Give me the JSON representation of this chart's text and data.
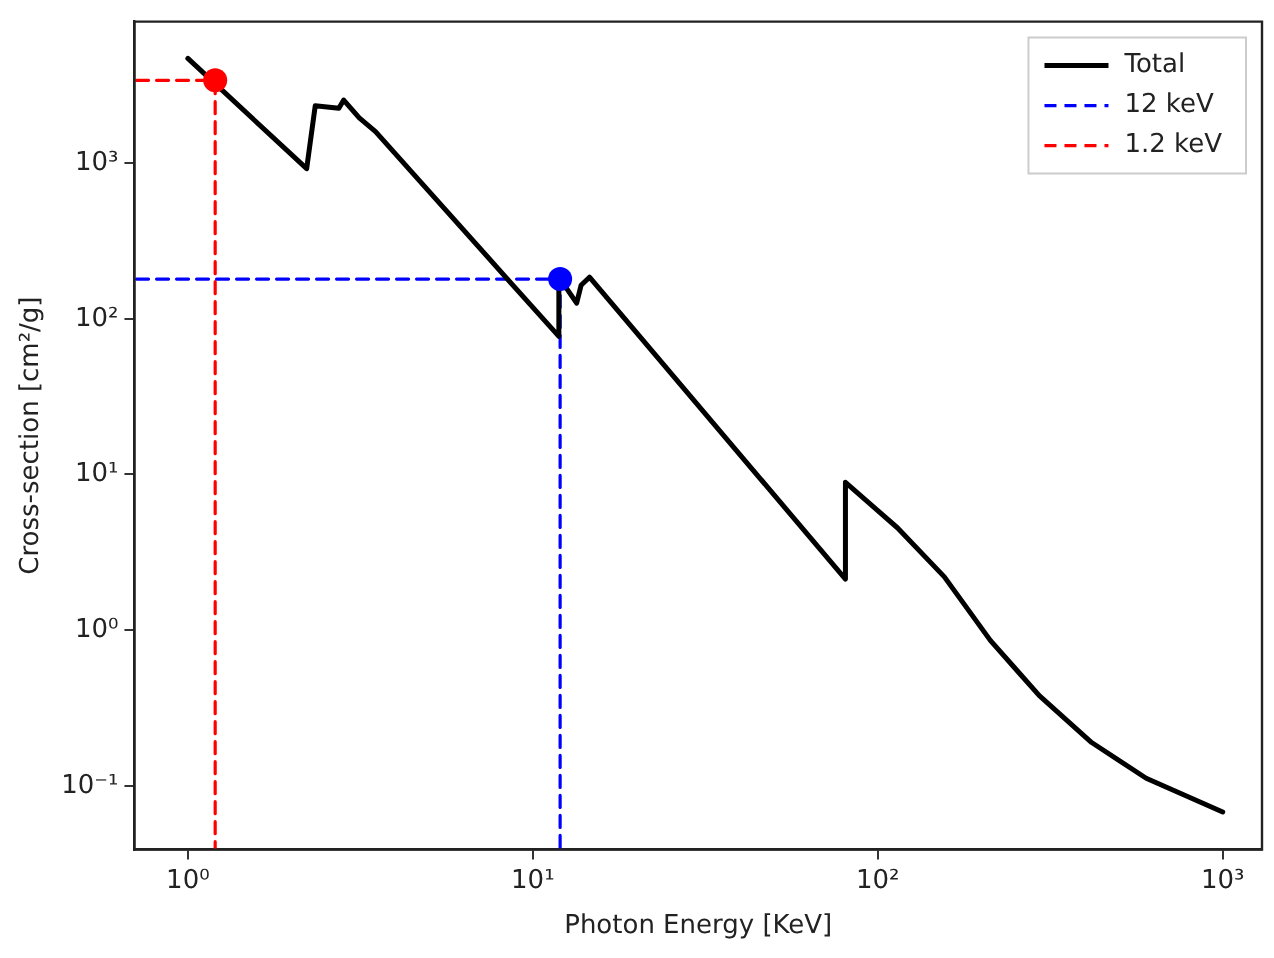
{
  "chart_data": {
    "type": "line",
    "xlabel": "Photon Energy [KeV]",
    "ylabel": "Cross-section [cm²/g]",
    "log": "xy",
    "xlim": [
      0.71,
      1300
    ],
    "ylim": [
      0.039,
      8100
    ],
    "xticks": [
      {
        "value": 1,
        "label": "10⁰"
      },
      {
        "value": 10,
        "label": "10¹"
      },
      {
        "value": 100,
        "label": "10²"
      },
      {
        "value": 1000,
        "label": "10³"
      }
    ],
    "yticks": [
      {
        "value": 0.1,
        "label": "10⁻¹"
      },
      {
        "value": 1,
        "label": "10⁰"
      },
      {
        "value": 10,
        "label": "10¹"
      },
      {
        "value": 100,
        "label": "10²"
      },
      {
        "value": 1000,
        "label": "10³"
      }
    ],
    "grid": false,
    "legend": "top right",
    "marker": "none",
    "series": [
      {
        "name": "Total",
        "color": "#000000",
        "line_style": "solid",
        "x": [
          1,
          2.21,
          2.34,
          2.74,
          2.83,
          3.14,
          3.5,
          11.9,
          11.9,
          13.4,
          13.8,
          14.6,
          80.6,
          80.6,
          114,
          156,
          212,
          294,
          417,
          600,
          1000
        ],
        "values": [
          4700,
          920,
          2330,
          2250,
          2540,
          1950,
          1590,
          77,
          185,
          126,
          164,
          185,
          2.13,
          8.9,
          4.55,
          2.2,
          0.86,
          0.38,
          0.19,
          0.112,
          0.068
        ]
      },
      {
        "name": "12 keV",
        "color": "#0000ff",
        "line_style": "dashed",
        "x": [
          0.71,
          12,
          12
        ],
        "values": [
          180,
          180,
          0.039
        ]
      },
      {
        "name": "1.2 keV",
        "color": "#ff0000",
        "line_style": "dashed",
        "x": [
          0.71,
          1.2,
          1.2
        ],
        "values": [
          3400,
          3400,
          0.039
        ]
      },
      {
        "type": "scatter",
        "color": "#0000ff",
        "marker": "circle",
        "x": [
          12
        ],
        "values": [
          180
        ]
      },
      {
        "type": "scatter",
        "color": "#ff0000",
        "marker": "circle",
        "x": [
          1.2
        ],
        "values": [
          3400
        ]
      }
    ]
  }
}
